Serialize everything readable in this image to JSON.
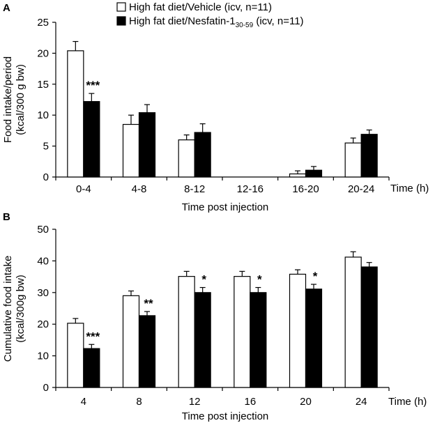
{
  "chart_data": [
    {
      "panel_label": "A",
      "type": "bar",
      "categories": [
        "0-4",
        "4-8",
        "8-12",
        "12-16",
        "16-20",
        "20-24"
      ],
      "series": [
        {
          "name": "High fat diet/Vehicle (icv, n=11)",
          "color": "#ffffff",
          "values": [
            20.4,
            8.5,
            6.0,
            0,
            0.5,
            5.5
          ],
          "errors": [
            1.5,
            1.5,
            0.8,
            0,
            0.5,
            0.8
          ]
        },
        {
          "name": "High fat diet/Nesfatin-1",
          "name_subscript": "30-59",
          "name_suffix": " (icv, n=11)",
          "color": "#000000",
          "values": [
            12.2,
            10.4,
            7.2,
            0,
            1.1,
            6.9
          ],
          "errors": [
            1.3,
            1.3,
            1.4,
            0,
            0.6,
            0.7
          ]
        }
      ],
      "significance": [
        {
          "category": "0-4",
          "label": "***"
        }
      ],
      "ylim": [
        0,
        25
      ],
      "yticks": [
        0,
        5,
        10,
        15,
        20,
        25
      ],
      "ylabel_line1": "Food intake/period",
      "ylabel_line2": "(kcal/300 g bw)",
      "xlabel": "Time post injection",
      "x_unit_label": "Time (h)",
      "legend": "top-center"
    },
    {
      "panel_label": "B",
      "type": "bar",
      "categories": [
        "4",
        "8",
        "12",
        "16",
        "20",
        "24"
      ],
      "series": [
        {
          "name": "High fat diet/Vehicle (icv, n=11)",
          "color": "#ffffff",
          "values": [
            20.3,
            29.0,
            35.1,
            35.1,
            35.8,
            41.2
          ],
          "errors": [
            1.5,
            1.5,
            1.6,
            1.6,
            1.4,
            1.7
          ]
        },
        {
          "name": "High fat diet/Nesfatin-1 30-59 (icv, n=11)",
          "color": "#000000",
          "values": [
            12.3,
            22.7,
            30.0,
            30.0,
            31.1,
            38.1
          ],
          "errors": [
            1.3,
            1.3,
            1.6,
            1.6,
            1.5,
            1.4
          ]
        }
      ],
      "significance": [
        {
          "category": "4",
          "label": "***"
        },
        {
          "category": "8",
          "label": "**"
        },
        {
          "category": "12",
          "label": "*"
        },
        {
          "category": "16",
          "label": "*"
        },
        {
          "category": "20",
          "label": "*"
        }
      ],
      "ylim": [
        0,
        50
      ],
      "yticks": [
        0,
        10,
        20,
        30,
        40,
        50
      ],
      "ylabel_line1": "Cumulative food intake",
      "ylabel_line2": "(kcal/300g bw)",
      "xlabel": "Time post injection",
      "x_unit_label": "Time (h)"
    }
  ]
}
